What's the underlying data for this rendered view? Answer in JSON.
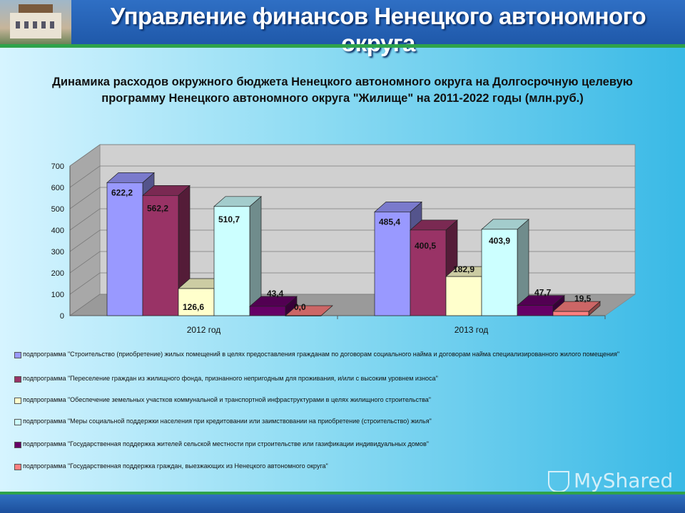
{
  "header": {
    "title": "Управление финансов Ненецкого автономного округа"
  },
  "chart_data": {
    "type": "bar",
    "title": "Динамика расходов окружного бюджета Ненецкого автономного округа на Долгосрочную целевую программу Ненецкого автономного округа \"Жилище\" на 2011-2022 годы (млн.руб.)",
    "categories": [
      "2012 год",
      "2013 год"
    ],
    "ylim": [
      0,
      700
    ],
    "yticks": [
      0,
      100,
      200,
      300,
      400,
      500,
      600,
      700
    ],
    "grid": true,
    "legend_position": "bottom",
    "series": [
      {
        "name": "подпрограмма \"Строительство (приобретение) жилых помещений в целях предоставления гражданам по договорам социального найма и договорам найма специализированного жилого помещения\"",
        "values": [
          622.2,
          485.4
        ],
        "labels": [
          "622,2",
          "485,4"
        ],
        "color": "#9999ff"
      },
      {
        "name": "подпрограмма \"Переселение граждан из жилищного фонда, признанного непригодным для проживания, и/или с высоким уровнем износа\"",
        "values": [
          562.2,
          400.5
        ],
        "labels": [
          "562,2",
          "400,5"
        ],
        "color": "#993366"
      },
      {
        "name": "подпрограмма \"Обеспечение земельных участков коммунальной и транспортной инфраструктурами в целях жилищного строительства\"",
        "values": [
          126.6,
          182.9
        ],
        "labels": [
          "126,6",
          "182,9"
        ],
        "color": "#ffffcc"
      },
      {
        "name": "подпрограмма \"Меры социальной поддержки населения при кредитовании или заимствовании на приобретение (строительство) жилья\"",
        "values": [
          510.7,
          403.9
        ],
        "labels": [
          "510,7",
          "403,9"
        ],
        "color": "#ccffff"
      },
      {
        "name": "подпрограмма \"Государственная поддержка жителей сельской местности при строительстве или газификации индивидуальных домов\"",
        "values": [
          43.4,
          47.7
        ],
        "labels": [
          "43,4",
          "47,7"
        ],
        "color": "#660066"
      },
      {
        "name": "подпрограмма \"Государственная поддержка граждан, выезжающих из Ненецкого автономного округа\"",
        "values": [
          0.0,
          19.5
        ],
        "labels": [
          "0,0",
          "19,5"
        ],
        "color": "#ff8080"
      }
    ]
  },
  "watermark": {
    "text": "MyShared"
  }
}
